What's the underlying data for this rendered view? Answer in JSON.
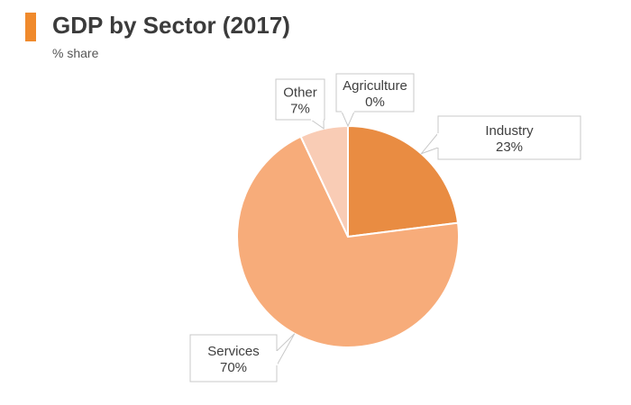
{
  "header": {
    "title": "GDP by Sector (2017)",
    "subtitle": "% share",
    "accent_color": "#f08a2c"
  },
  "chart_data": {
    "type": "pie",
    "title": "GDP by Sector (2017)",
    "subtitle": "% share",
    "start_angle_deg": 0,
    "direction": "clockwise",
    "legend": "none",
    "slices": [
      {
        "label": "Agriculture",
        "value": 0,
        "value_label": "0%",
        "color": "#e98c42"
      },
      {
        "label": "Industry",
        "value": 23,
        "value_label": "23%",
        "color": "#e98c42"
      },
      {
        "label": "Services",
        "value": 70,
        "value_label": "70%",
        "color": "#f7ac7a"
      },
      {
        "label": "Other",
        "value": 7,
        "value_label": "7%",
        "color": "#f9ccb5"
      }
    ]
  }
}
